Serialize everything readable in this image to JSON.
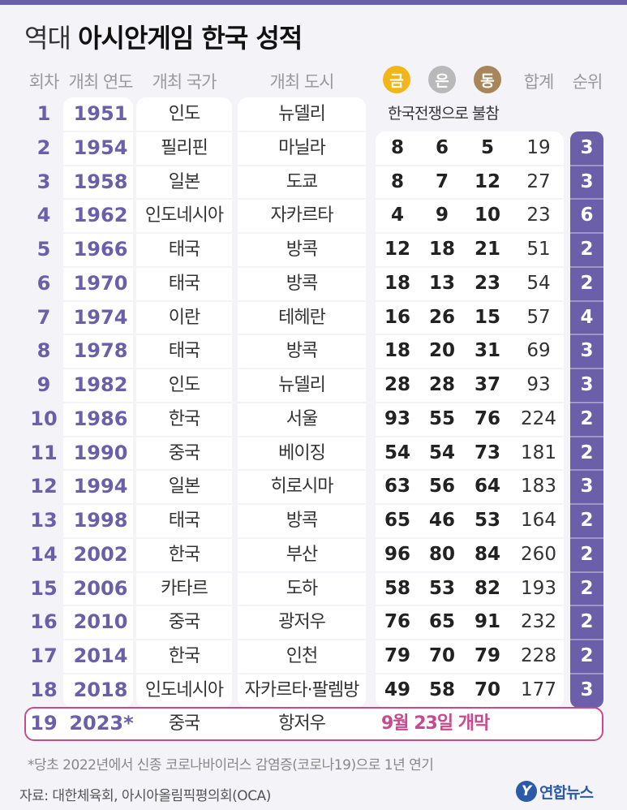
{
  "title": {
    "light": "역대",
    "bold": "아시안게임 한국 성적"
  },
  "headers": {
    "round": "회차",
    "year": "개최 연도",
    "country": "개최 국가",
    "city": "개최 도시",
    "gold": "금",
    "silver": "은",
    "bronze": "동",
    "total": "합계",
    "rank": "순위"
  },
  "colors": {
    "accent": "#6a5fa8",
    "gold": "#f2b61b",
    "silver": "#b9b9b9",
    "bronze": "#a8865a",
    "highlight": "#c74a8c"
  },
  "chart_data": {
    "type": "table",
    "columns": [
      "회차",
      "개최 연도",
      "개최 국가",
      "개최 도시",
      "금",
      "은",
      "동",
      "합계",
      "순위"
    ],
    "rows": [
      {
        "round": "1",
        "year": "1951",
        "country": "인도",
        "city": "뉴델리",
        "note": "한국전쟁으로 불참"
      },
      {
        "round": "2",
        "year": "1954",
        "country": "필리핀",
        "city": "마닐라",
        "gold": 8,
        "silver": 6,
        "bronze": 5,
        "total": 19,
        "rank": 3
      },
      {
        "round": "3",
        "year": "1958",
        "country": "일본",
        "city": "도쿄",
        "gold": 8,
        "silver": 7,
        "bronze": 12,
        "total": 27,
        "rank": 3
      },
      {
        "round": "4",
        "year": "1962",
        "country": "인도네시아",
        "city": "자카르타",
        "gold": 4,
        "silver": 9,
        "bronze": 10,
        "total": 23,
        "rank": 6
      },
      {
        "round": "5",
        "year": "1966",
        "country": "태국",
        "city": "방콕",
        "gold": 12,
        "silver": 18,
        "bronze": 21,
        "total": 51,
        "rank": 2
      },
      {
        "round": "6",
        "year": "1970",
        "country": "태국",
        "city": "방콕",
        "gold": 18,
        "silver": 13,
        "bronze": 23,
        "total": 54,
        "rank": 2
      },
      {
        "round": "7",
        "year": "1974",
        "country": "이란",
        "city": "테헤란",
        "gold": 16,
        "silver": 26,
        "bronze": 15,
        "total": 57,
        "rank": 4
      },
      {
        "round": "8",
        "year": "1978",
        "country": "태국",
        "city": "방콕",
        "gold": 18,
        "silver": 20,
        "bronze": 31,
        "total": 69,
        "rank": 3
      },
      {
        "round": "9",
        "year": "1982",
        "country": "인도",
        "city": "뉴델리",
        "gold": 28,
        "silver": 28,
        "bronze": 37,
        "total": 93,
        "rank": 3
      },
      {
        "round": "10",
        "year": "1986",
        "country": "한국",
        "city": "서울",
        "gold": 93,
        "silver": 55,
        "bronze": 76,
        "total": 224,
        "rank": 2
      },
      {
        "round": "11",
        "year": "1990",
        "country": "중국",
        "city": "베이징",
        "gold": 54,
        "silver": 54,
        "bronze": 73,
        "total": 181,
        "rank": 2
      },
      {
        "round": "12",
        "year": "1994",
        "country": "일본",
        "city": "히로시마",
        "gold": 63,
        "silver": 56,
        "bronze": 64,
        "total": 183,
        "rank": 3
      },
      {
        "round": "13",
        "year": "1998",
        "country": "태국",
        "city": "방콕",
        "gold": 65,
        "silver": 46,
        "bronze": 53,
        "total": 164,
        "rank": 2
      },
      {
        "round": "14",
        "year": "2002",
        "country": "한국",
        "city": "부산",
        "gold": 96,
        "silver": 80,
        "bronze": 84,
        "total": 260,
        "rank": 2
      },
      {
        "round": "15",
        "year": "2006",
        "country": "카타르",
        "city": "도하",
        "gold": 58,
        "silver": 53,
        "bronze": 82,
        "total": 193,
        "rank": 2
      },
      {
        "round": "16",
        "year": "2010",
        "country": "중국",
        "city": "광저우",
        "gold": 76,
        "silver": 65,
        "bronze": 91,
        "total": 232,
        "rank": 2
      },
      {
        "round": "17",
        "year": "2014",
        "country": "한국",
        "city": "인천",
        "gold": 79,
        "silver": 70,
        "bronze": 79,
        "total": 228,
        "rank": 2
      },
      {
        "round": "18",
        "year": "2018",
        "country": "인도네시아",
        "city": "자카르타·팔렘방",
        "gold": 49,
        "silver": 58,
        "bronze": 70,
        "total": 177,
        "rank": 3
      }
    ],
    "upcoming": {
      "round": "19",
      "year": "2023*",
      "country": "중국",
      "city": "항저우",
      "note": "9월 23일 개막"
    }
  },
  "footnote": "*당초 2022년에서 신종 코로나바이러스 감염증(코로나19)으로 1년 연기",
  "source": "자료: 대한체육회, 아시아올림픽평의회(OCA)",
  "logo": {
    "mark": "Y",
    "text": "연합뉴스"
  }
}
